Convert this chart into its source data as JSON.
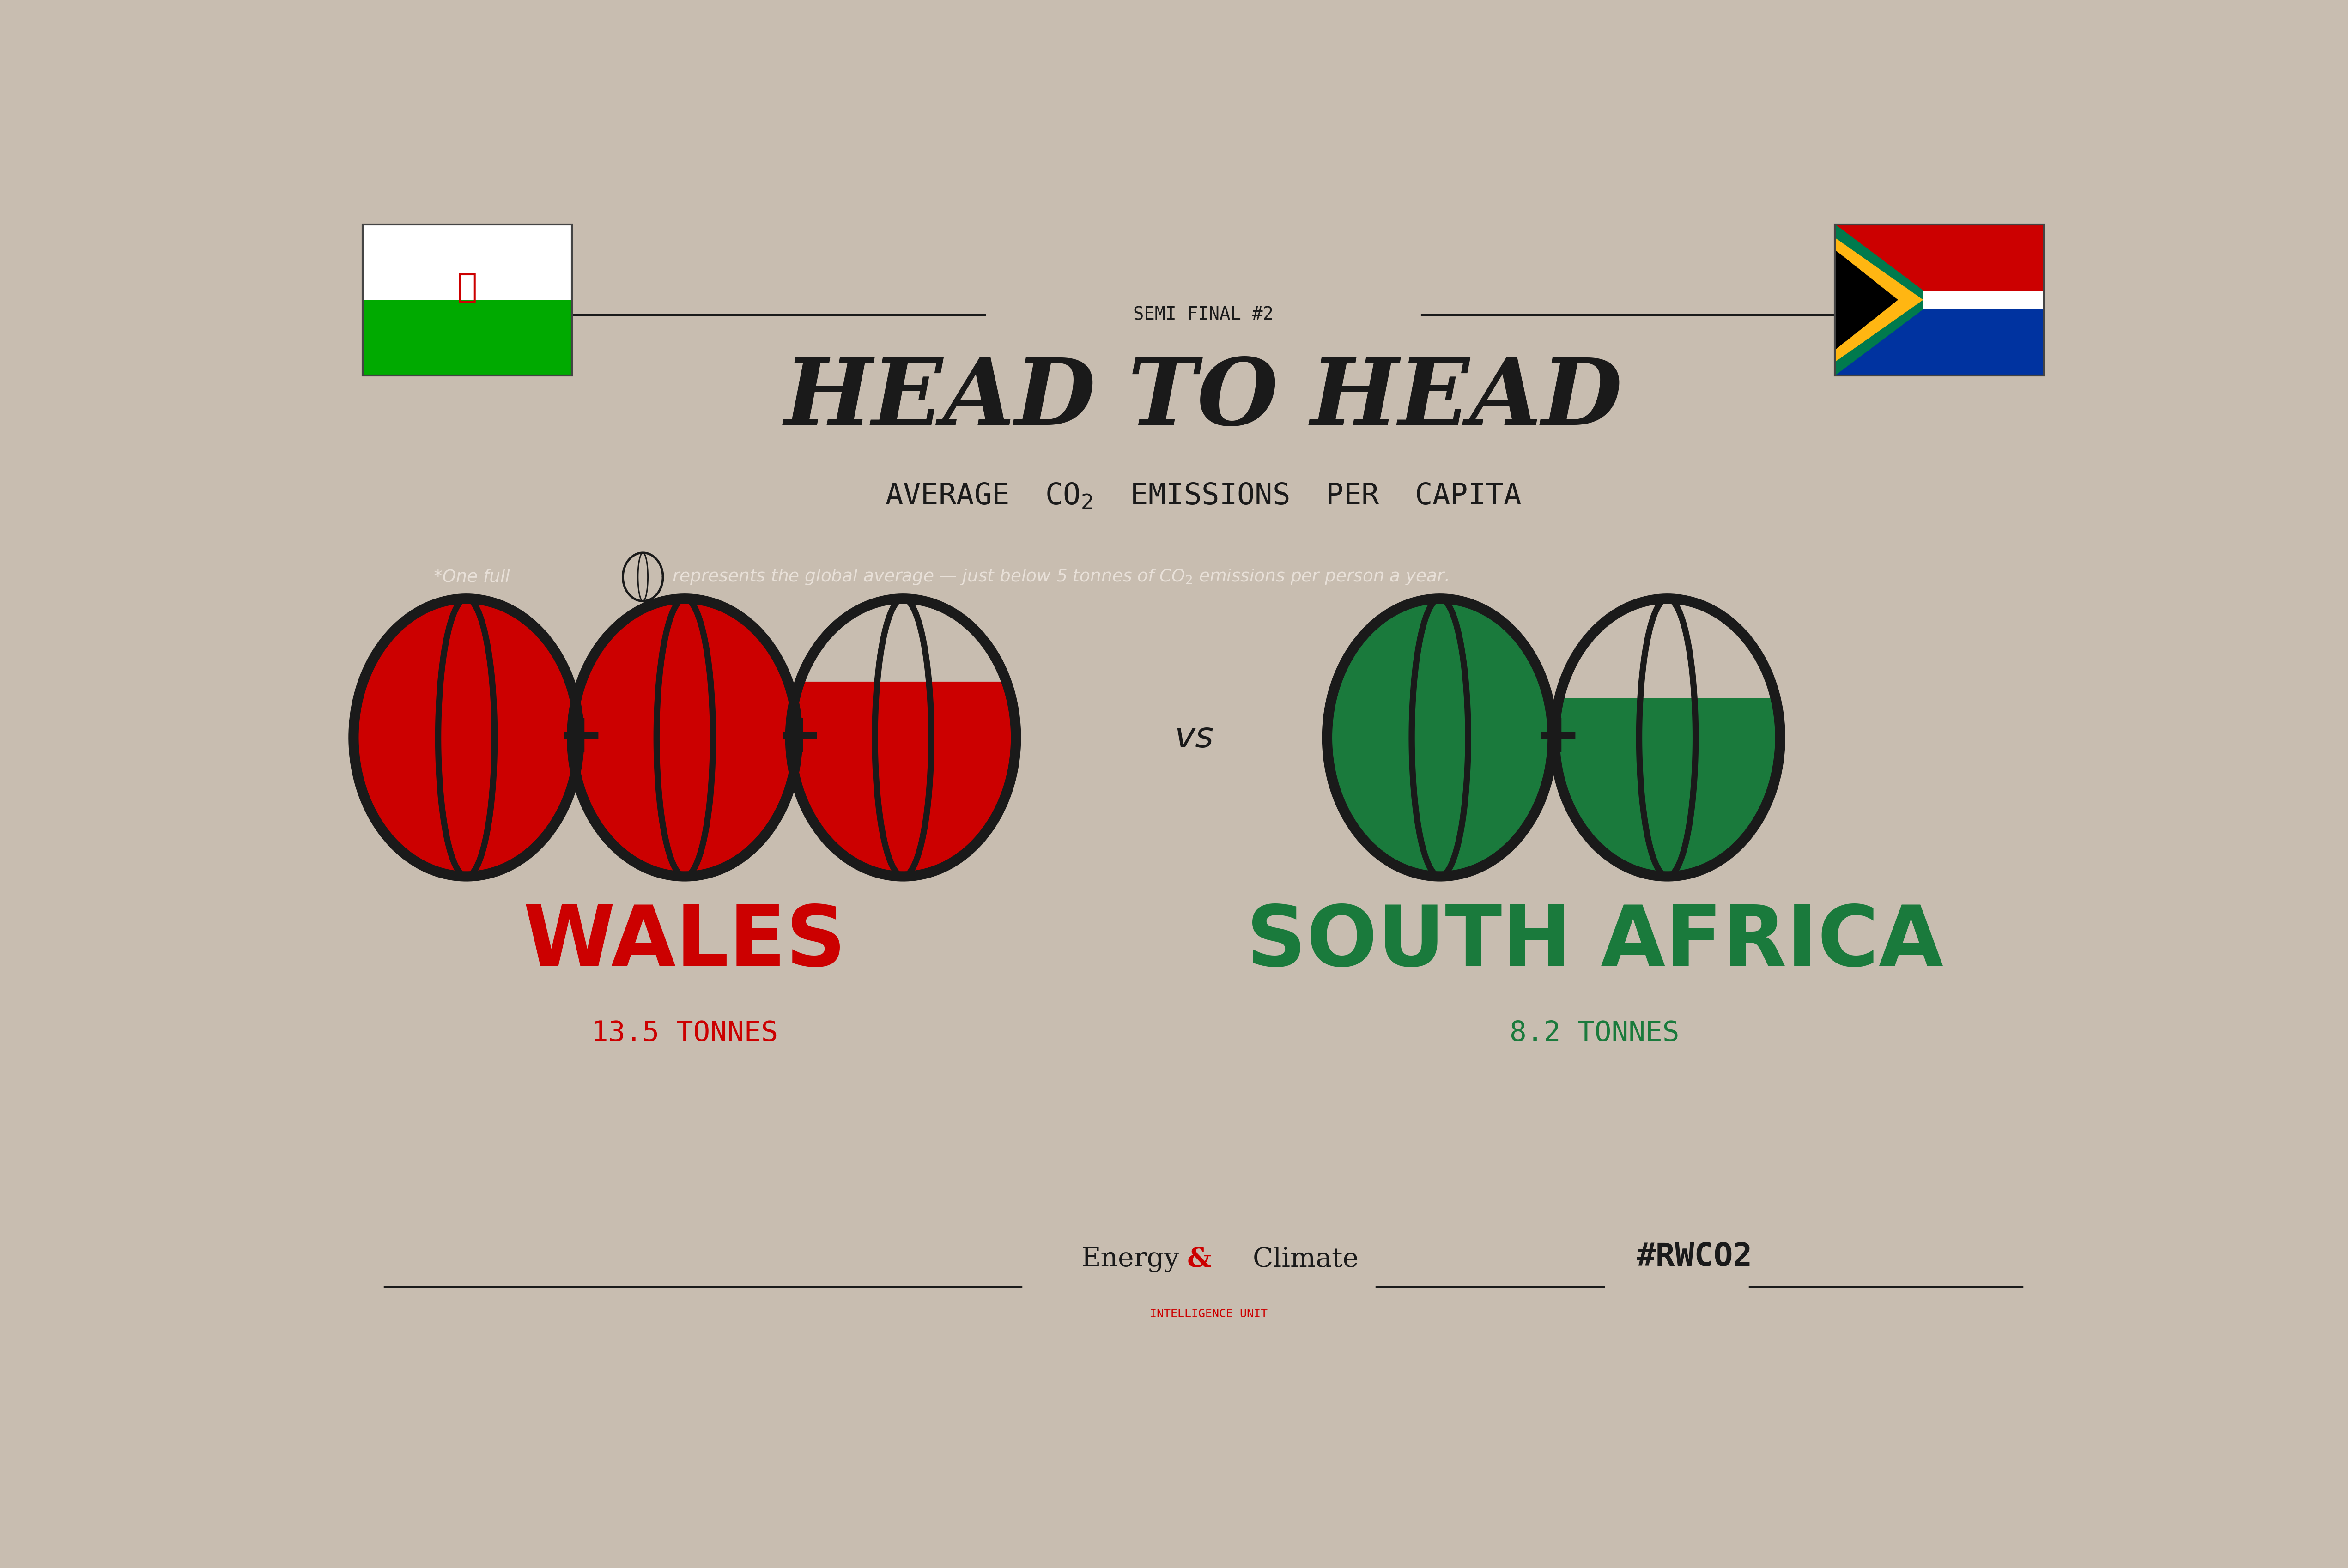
{
  "bg_color": "#c8bdb0",
  "title_semifinal": "SEMI FINAL #2",
  "title_main": "HEAD TO HEAD",
  "title_sub": "AVERAGE CO₂ EMISSIONS PER CAPITA",
  "wales_label": "WALES",
  "wales_tonnes": "13.5 TONNES",
  "wales_value": 13.5,
  "wales_color": "#cc0000",
  "sa_label": "SOUTH AFRICA",
  "sa_tonnes": "8.2 TONNES",
  "sa_value": 8.2,
  "sa_color": "#1a7a3c",
  "vs_text": "vs",
  "global_avg": 5.0,
  "footer_hashtag": "#RWCO2",
  "dark_text": "#1a1a1a",
  "light_text": "#e8e0d8",
  "flag_wales_white": "#ffffff",
  "flag_wales_green": "#00aa00",
  "flag_sa_red": "#cc0000",
  "flag_sa_blue": "#0033a0",
  "flag_sa_green": "#007A4D",
  "flag_sa_gold": "#FFB612",
  "red_ampersand": "#cc0000"
}
